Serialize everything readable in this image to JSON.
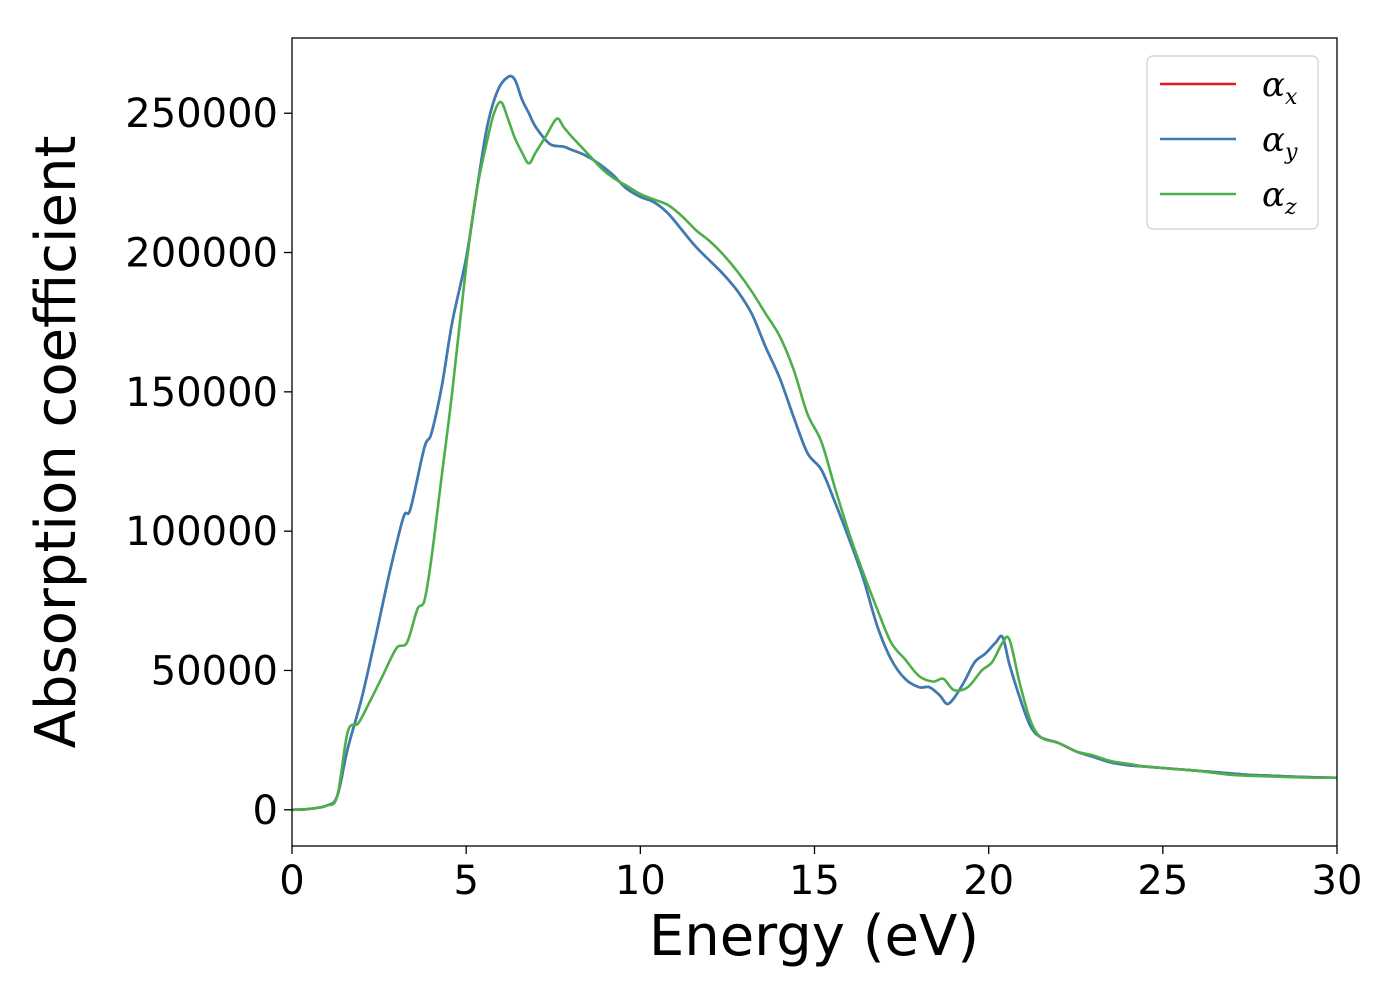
{
  "chart_data": {
    "type": "line",
    "xlabel": "Energy (eV)",
    "ylabel": "Absorption coefficient",
    "xlim": [
      0,
      30
    ],
    "ylim": [
      -13000,
      277000
    ],
    "xticks": [
      0,
      5,
      10,
      15,
      20,
      25,
      30
    ],
    "yticks": [
      0,
      50000,
      100000,
      150000,
      200000,
      250000
    ],
    "grid": false,
    "legend_position": "top-right",
    "series": [
      {
        "name": "α",
        "subscript": "x",
        "color": "#e41a1c",
        "x": [
          0,
          0.5,
          1.0,
          1.3,
          1.6,
          2.0,
          2.4,
          2.8,
          3.2,
          3.4,
          3.8,
          4.0,
          4.3,
          4.6,
          5.0,
          5.3,
          5.6,
          5.9,
          6.2,
          6.4,
          6.6,
          6.8,
          7.0,
          7.4,
          7.8,
          8.0,
          8.4,
          8.8,
          9.2,
          9.6,
          10.0,
          10.4,
          10.8,
          11.2,
          11.6,
          12.0,
          12.4,
          12.8,
          13.2,
          13.6,
          14.0,
          14.4,
          14.8,
          15.2,
          15.6,
          16.0,
          16.4,
          16.8,
          17.2,
          17.6,
          18.0,
          18.3,
          18.6,
          18.8,
          19.0,
          19.3,
          19.6,
          19.9,
          20.2,
          20.4,
          20.6,
          20.9,
          21.2,
          21.5,
          22.0,
          22.5,
          23.0,
          23.5,
          24.0,
          24.5,
          25.0,
          25.5,
          26.0,
          26.5,
          27.0,
          27.5,
          28.0,
          28.5,
          29.0,
          29.5,
          30.0
        ],
        "y": [
          0,
          300,
          1500,
          5000,
          22000,
          40000,
          62000,
          85000,
          105000,
          108000,
          130000,
          135000,
          152000,
          175000,
          198000,
          222000,
          245000,
          258000,
          263000,
          262000,
          255000,
          250000,
          245000,
          239000,
          238000,
          237000,
          235000,
          232000,
          228000,
          223000,
          220000,
          218000,
          214000,
          208000,
          202000,
          197000,
          192000,
          186000,
          178000,
          166000,
          155000,
          141000,
          128000,
          122000,
          110000,
          97000,
          83000,
          66000,
          54000,
          47000,
          44000,
          44000,
          41000,
          38000,
          40000,
          46000,
          53000,
          56000,
          60000,
          62000,
          52000,
          40000,
          30000,
          26000,
          24000,
          21000,
          19000,
          17000,
          16000,
          15500,
          15000,
          14500,
          14000,
          13500,
          13000,
          12500,
          12300,
          12000,
          11800,
          11600,
          11500
        ]
      },
      {
        "name": "α",
        "subscript": "y",
        "color": "#377eb8",
        "x": [
          0,
          0.5,
          1.0,
          1.3,
          1.6,
          2.0,
          2.4,
          2.8,
          3.2,
          3.4,
          3.8,
          4.0,
          4.3,
          4.6,
          5.0,
          5.3,
          5.6,
          5.9,
          6.2,
          6.4,
          6.6,
          6.8,
          7.0,
          7.4,
          7.8,
          8.0,
          8.4,
          8.8,
          9.2,
          9.6,
          10.0,
          10.4,
          10.8,
          11.2,
          11.6,
          12.0,
          12.4,
          12.8,
          13.2,
          13.6,
          14.0,
          14.4,
          14.8,
          15.2,
          15.6,
          16.0,
          16.4,
          16.8,
          17.2,
          17.6,
          18.0,
          18.3,
          18.6,
          18.8,
          19.0,
          19.3,
          19.6,
          19.9,
          20.2,
          20.4,
          20.6,
          20.9,
          21.2,
          21.5,
          22.0,
          22.5,
          23.0,
          23.5,
          24.0,
          24.5,
          25.0,
          25.5,
          26.0,
          26.5,
          27.0,
          27.5,
          28.0,
          28.5,
          29.0,
          29.5,
          30.0
        ],
        "y": [
          0,
          300,
          1500,
          5000,
          22000,
          40000,
          62000,
          85000,
          105000,
          108000,
          130000,
          135000,
          152000,
          175000,
          198000,
          222000,
          245000,
          258000,
          263000,
          262000,
          255000,
          250000,
          245000,
          239000,
          238000,
          237000,
          235000,
          232000,
          228000,
          223000,
          220000,
          218000,
          214000,
          208000,
          202000,
          197000,
          192000,
          186000,
          178000,
          166000,
          155000,
          141000,
          128000,
          122000,
          110000,
          97000,
          83000,
          66000,
          54000,
          47000,
          44000,
          44000,
          41000,
          38000,
          40000,
          46000,
          53000,
          56000,
          60000,
          62000,
          52000,
          40000,
          30000,
          26000,
          24000,
          21000,
          19000,
          17000,
          16000,
          15500,
          15000,
          14500,
          14000,
          13500,
          13000,
          12500,
          12300,
          12000,
          11800,
          11600,
          11500
        ]
      },
      {
        "name": "α",
        "subscript": "z",
        "color": "#4daf4a",
        "x": [
          0,
          0.5,
          1.0,
          1.3,
          1.6,
          1.9,
          2.2,
          2.6,
          3.0,
          3.3,
          3.6,
          3.8,
          4.0,
          4.3,
          4.6,
          5.0,
          5.3,
          5.6,
          5.8,
          6.0,
          6.2,
          6.4,
          6.6,
          6.8,
          7.0,
          7.3,
          7.6,
          7.8,
          8.0,
          8.3,
          8.6,
          8.9,
          9.2,
          9.6,
          10.0,
          10.4,
          10.8,
          11.2,
          11.6,
          12.0,
          12.4,
          12.8,
          13.2,
          13.6,
          14.0,
          14.4,
          14.8,
          15.2,
          15.6,
          16.0,
          16.4,
          16.8,
          17.2,
          17.6,
          18.0,
          18.4,
          18.7,
          19.0,
          19.4,
          19.8,
          20.1,
          20.4,
          20.6,
          20.9,
          21.2,
          21.5,
          22.0,
          22.5,
          23.0,
          23.5,
          24.0,
          24.5,
          25.0,
          25.5,
          26.0,
          26.5,
          27.0,
          27.5,
          28.0,
          28.5,
          29.0,
          29.5,
          30.0
        ],
        "y": [
          0,
          300,
          1500,
          5000,
          28000,
          31000,
          38000,
          48000,
          58000,
          60000,
          72000,
          75000,
          90000,
          120000,
          150000,
          195000,
          222000,
          240000,
          250000,
          254000,
          248000,
          241000,
          236000,
          232000,
          236000,
          242000,
          248000,
          245000,
          242000,
          238000,
          234000,
          230000,
          227000,
          224000,
          221000,
          219000,
          217000,
          213000,
          208000,
          204000,
          199000,
          193000,
          186000,
          178000,
          170000,
          158000,
          142000,
          132000,
          115000,
          99000,
          85000,
          72000,
          60000,
          54000,
          48000,
          46000,
          47000,
          43000,
          44000,
          50000,
          53000,
          60000,
          61000,
          45000,
          32000,
          26000,
          24000,
          21000,
          19500,
          17500,
          16500,
          15500,
          15000,
          14500,
          14000,
          13200,
          12500,
          12200,
          12000,
          11800,
          11600,
          11500,
          11500
        ]
      }
    ]
  }
}
